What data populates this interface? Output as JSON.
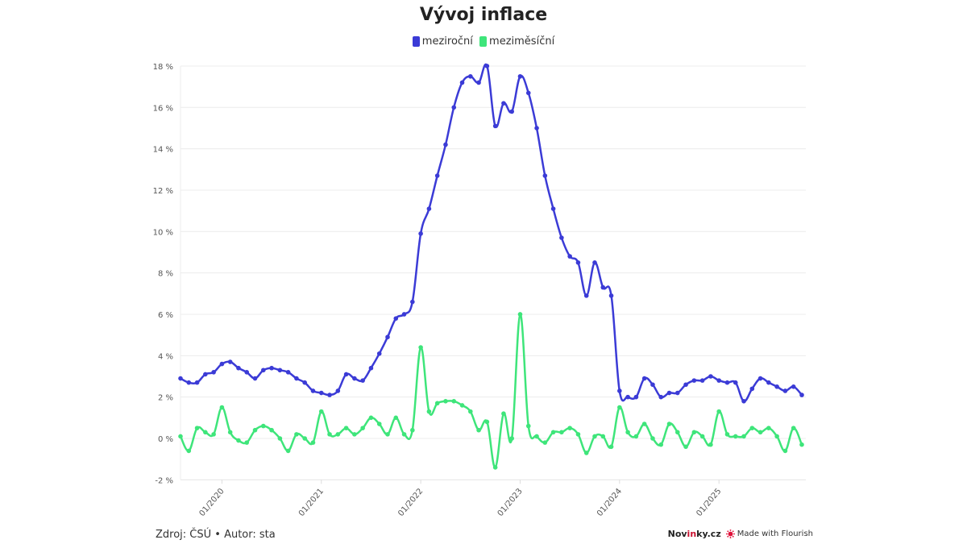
{
  "title": "Vývoj inflace",
  "legend": [
    {
      "label": "meziroční",
      "color": "#3b3bd6"
    },
    {
      "label": "meziměsíční",
      "color": "#3ee57a"
    }
  ],
  "footer": {
    "source": "Zdroj: ČSÚ • Autor: sta",
    "brand_prefix": "Nov",
    "brand_accent": "in",
    "brand_suffix": "ky.cz",
    "flourish": "Made with Flourish",
    "flourish_color": "#e0123a"
  },
  "chart_data": {
    "type": "line",
    "title": "Vývoj inflace",
    "xlabel": "",
    "ylabel": "",
    "ylim": [
      -2,
      18
    ],
    "yticks": [
      -2,
      0,
      2,
      4,
      6,
      8,
      10,
      12,
      14,
      16,
      18
    ],
    "ytick_suffix": " %",
    "xticks": [
      "01/2020",
      "01/2021",
      "01/2022",
      "01/2023",
      "01/2024",
      "01/2025"
    ],
    "grid": true,
    "legend_position": "top",
    "x_start": "08/2019",
    "x_end": "11/2025",
    "x": [
      "08/2019",
      "09/2019",
      "10/2019",
      "11/2019",
      "12/2019",
      "01/2020",
      "02/2020",
      "03/2020",
      "04/2020",
      "05/2020",
      "06/2020",
      "07/2020",
      "08/2020",
      "09/2020",
      "10/2020",
      "11/2020",
      "12/2020",
      "01/2021",
      "02/2021",
      "03/2021",
      "04/2021",
      "05/2021",
      "06/2021",
      "07/2021",
      "08/2021",
      "09/2021",
      "10/2021",
      "11/2021",
      "12/2021",
      "01/2022",
      "02/2022",
      "03/2022",
      "04/2022",
      "05/2022",
      "06/2022",
      "07/2022",
      "08/2022",
      "09/2022",
      "10/2022",
      "11/2022",
      "12/2022",
      "01/2023",
      "02/2023",
      "03/2023",
      "04/2023",
      "05/2023",
      "06/2023",
      "07/2023",
      "08/2023",
      "09/2023",
      "10/2023",
      "11/2023",
      "12/2023",
      "01/2024",
      "02/2024",
      "03/2024",
      "04/2024",
      "05/2024",
      "06/2024",
      "07/2024",
      "08/2024",
      "09/2024",
      "10/2024",
      "11/2024",
      "12/2024",
      "01/2025",
      "02/2025",
      "03/2025",
      "04/2025",
      "05/2025",
      "06/2025",
      "07/2025",
      "08/2025",
      "09/2025",
      "10/2025",
      "11/2025"
    ],
    "series": [
      {
        "name": "meziroční",
        "color": "#3b3bd6",
        "values": [
          2.9,
          2.7,
          2.7,
          3.1,
          3.2,
          3.6,
          3.7,
          3.4,
          3.2,
          2.9,
          3.3,
          3.4,
          3.3,
          3.2,
          2.9,
          2.7,
          2.3,
          2.2,
          2.1,
          2.3,
          3.1,
          2.9,
          2.8,
          3.4,
          4.1,
          4.9,
          5.8,
          6.0,
          6.6,
          9.9,
          11.1,
          12.7,
          14.2,
          16.0,
          17.2,
          17.5,
          17.2,
          18.0,
          15.1,
          16.2,
          15.8,
          17.5,
          16.7,
          15.0,
          12.7,
          11.1,
          9.7,
          8.8,
          8.5,
          6.9,
          8.5,
          7.3,
          6.9,
          2.3,
          2.0,
          2.0,
          2.9,
          2.6,
          2.0,
          2.2,
          2.2,
          2.6,
          2.8,
          2.8,
          3.0,
          2.8,
          2.7,
          2.7,
          1.8,
          2.4,
          2.9,
          2.7,
          2.5,
          2.3,
          2.5,
          2.1
        ]
      },
      {
        "name": "meziměsíční",
        "color": "#3ee57a",
        "values": [
          0.1,
          -0.6,
          0.5,
          0.3,
          0.2,
          1.5,
          0.3,
          -0.1,
          -0.2,
          0.4,
          0.6,
          0.4,
          0.0,
          -0.6,
          0.2,
          0.0,
          -0.2,
          1.3,
          0.2,
          0.2,
          0.5,
          0.2,
          0.5,
          1.0,
          0.7,
          0.2,
          1.0,
          0.2,
          0.4,
          4.4,
          1.3,
          1.7,
          1.8,
          1.8,
          1.6,
          1.3,
          0.4,
          0.8,
          -1.4,
          1.2,
          0.0,
          6.0,
          0.6,
          0.1,
          -0.2,
          0.3,
          0.3,
          0.5,
          0.2,
          -0.7,
          0.1,
          0.1,
          -0.4,
          1.5,
          0.3,
          0.1,
          0.7,
          0.0,
          -0.3,
          0.7,
          0.3,
          -0.4,
          0.3,
          0.1,
          -0.3,
          1.3,
          0.2,
          0.1,
          0.1,
          0.5,
          0.3,
          0.5,
          0.1,
          -0.6,
          0.5,
          -0.3
        ]
      }
    ]
  }
}
